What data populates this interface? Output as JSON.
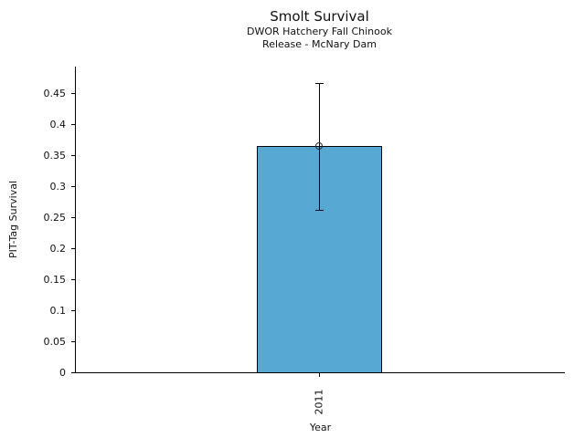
{
  "chart_data": {
    "type": "bar",
    "title": "Smolt Survival",
    "subtitle": [
      "DWOR Hatchery Fall Chinook",
      "Release - McNary Dam"
    ],
    "xlabel": "Year",
    "ylabel": "PIT-Tag Survival",
    "categories": [
      "2011"
    ],
    "values": [
      0.366
    ],
    "error_bars": {
      "low": [
        0.262
      ],
      "high": [
        0.467
      ]
    },
    "ytick_labels": [
      "0",
      "0.05",
      "0.1",
      "0.15",
      "0.2",
      "0.25",
      "0.3",
      "0.35",
      "0.4",
      "0.45"
    ],
    "ylim": [
      0,
      0.494
    ],
    "grid": false,
    "legend": false,
    "marker": "open-circle",
    "bar_color": "#58a8d4",
    "bar_edge_color": "#000000",
    "error_color": "#000000"
  }
}
